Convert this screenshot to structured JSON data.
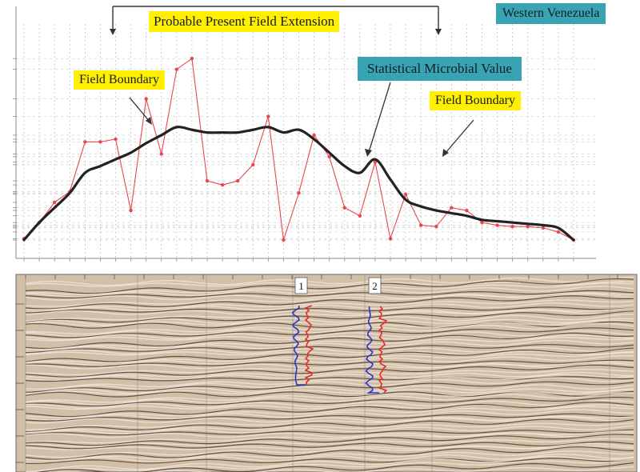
{
  "annotations": {
    "region": "Western Venezuela",
    "field_extension": "Probable Present Field Extension",
    "boundary_left": "Field Boundary",
    "boundary_right": "Field Boundary",
    "microbial": "Statistical Microbial Value"
  },
  "colors": {
    "yellow_box": "#ffef00",
    "teal_box": "#3aa3b3",
    "raw_series": "#e8474c",
    "smooth_curve": "#222222",
    "seismic_base": "#c9b29a",
    "well_blue": "#2a35c8",
    "well_red": "#e62a2a"
  },
  "wells": [
    {
      "label": "1"
    },
    {
      "label": "2"
    }
  ],
  "chart_data": [
    {
      "type": "line",
      "title": "",
      "xlabel": "",
      "ylabel": "",
      "x": [
        1,
        2,
        3,
        4,
        5,
        6,
        7,
        8,
        9,
        10,
        11,
        12,
        13,
        14,
        15,
        16,
        17,
        18,
        19,
        20,
        21,
        22,
        23,
        24,
        25,
        26,
        27,
        28,
        29,
        30,
        31,
        32,
        33,
        34,
        35,
        36,
        37
      ],
      "series": [
        {
          "values": [
            1,
            13,
            28,
            36,
            73,
            73,
            75,
            22,
            105,
            64,
            127,
            135,
            44,
            41,
            44,
            56,
            92,
            0,
            35,
            78,
            62,
            24,
            18,
            58,
            1,
            34,
            11,
            10,
            24,
            22,
            13,
            11,
            10,
            10,
            9,
            6,
            0
          ]
        },
        {
          "values": [
            0,
            13,
            24,
            35,
            50,
            55,
            60,
            65,
            72,
            78,
            84,
            82,
            80,
            80,
            80,
            82,
            84,
            80,
            82,
            75,
            65,
            55,
            50,
            60,
            45,
            30,
            25,
            22,
            20,
            18,
            15,
            14,
            13,
            12,
            11,
            9,
            0
          ]
        }
      ],
      "ylim": [
        0,
        150
      ],
      "grid": true
    }
  ]
}
